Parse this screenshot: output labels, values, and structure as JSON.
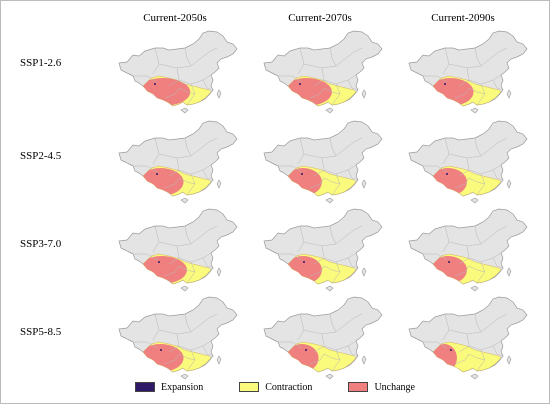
{
  "columns": [
    "Current-2050s",
    "Current-2070s",
    "Current-2090s"
  ],
  "rows": [
    "SSP1-2.6",
    "SSP2-4.5",
    "SSP3-7.0",
    "SSP5-8.5"
  ],
  "legend": [
    {
      "label": "Expansion",
      "color": "#2e1a66"
    },
    {
      "label": "Contraction",
      "color": "#fafa7d"
    },
    {
      "label": "Unchange",
      "color": "#f08080"
    }
  ],
  "colors": {
    "land": "#e4e4e4",
    "border": "#9a9a9a",
    "province": "#b8b8b8",
    "contraction": "#fafa7d",
    "unchange": "#f08080",
    "expansion": "#2e1a66"
  },
  "contraction_fraction": [
    [
      0.35,
      0.4,
      0.45
    ],
    [
      0.45,
      0.55,
      0.55
    ],
    [
      0.4,
      0.55,
      0.55
    ],
    [
      0.45,
      0.6,
      0.7
    ]
  ]
}
